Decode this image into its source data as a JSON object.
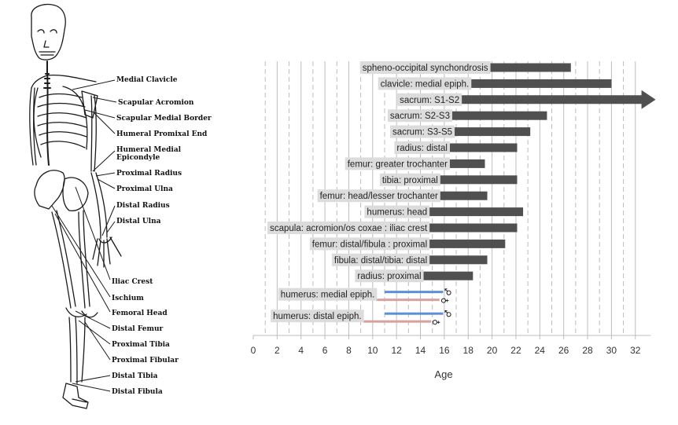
{
  "skeleton_labels": [
    "Medial Clavicle",
    "Scapular Acromion",
    "Scapular Medial Border",
    "Humeral Promixal End",
    "Humeral Medial Epicondyle",
    "Proximal Radius",
    "Proximal Ulna",
    "Distal Radius",
    "Distal Ulna",
    "Iliac Crest",
    "Ischium",
    "Femoral Head",
    "Distal Femur",
    "Proximal Tibia",
    "Proximal Fibular",
    "Distal Tibia",
    "Distal Fibula"
  ],
  "chart_data": {
    "type": "bar",
    "orientation": "horizontal",
    "xlabel": "Age",
    "ylabel": "",
    "xlim": [
      0,
      33
    ],
    "xticks": [
      0,
      2,
      4,
      6,
      8,
      10,
      12,
      14,
      16,
      18,
      20,
      22,
      24,
      26,
      28,
      30,
      32
    ],
    "grid": "vertical dashed",
    "bar_color": "#505050",
    "male_color": "#5b8fd9",
    "female_color": "#d9a0a0",
    "male_symbol": "♂",
    "female_symbol": "♀",
    "bars": [
      {
        "label": "spheno-occipital synchondrosis",
        "start": 19.8,
        "end": 26.6
      },
      {
        "label": "clavicle: medial epiph.",
        "start": 18.2,
        "end": 30.0
      },
      {
        "label": "sacrum: S1-S2",
        "start": 17.4,
        "end": 33.0,
        "open_ended": true
      },
      {
        "label": "sacrum: S2-S3",
        "start": 16.6,
        "end": 24.6
      },
      {
        "label": "sacrum: S3-S5",
        "start": 16.8,
        "end": 23.2
      },
      {
        "label": "radius: distal",
        "start": 16.4,
        "end": 22.1
      },
      {
        "label": "femur: greater trochanter",
        "start": 16.4,
        "end": 19.4
      },
      {
        "label": "tibia: proximal",
        "start": 15.6,
        "end": 22.1
      },
      {
        "label": "femur: head/lesser trochanter",
        "start": 15.6,
        "end": 19.6
      },
      {
        "label": "humerus: head",
        "start": 14.7,
        "end": 22.6
      },
      {
        "label": "scapula: acromion/os coxae : iliac crest",
        "start": 14.7,
        "end": 22.1
      },
      {
        "label": "femur: distal/fibula : proximal",
        "start": 14.7,
        "end": 21.1
      },
      {
        "label": "fibula: distal/tibia: distal",
        "start": 14.7,
        "end": 19.6
      },
      {
        "label": "radius: proximal",
        "start": 14.2,
        "end": 18.4
      }
    ],
    "sex_bars": [
      {
        "label": "humerus: medial epiph.",
        "male": [
          11.0,
          15.9
        ],
        "female": [
          10.3,
          15.6
        ]
      },
      {
        "label": "humerus: distal epiph.",
        "male": [
          11.0,
          15.9
        ],
        "female": [
          9.2,
          14.9
        ]
      }
    ]
  }
}
